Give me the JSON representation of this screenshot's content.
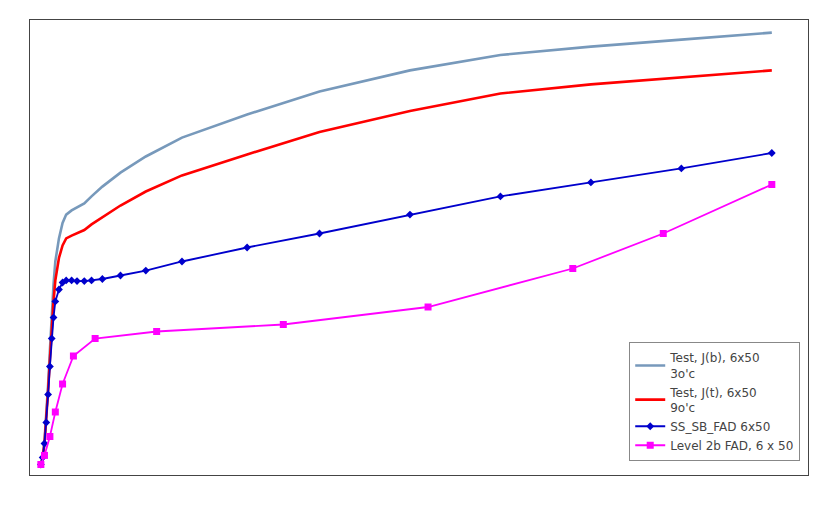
{
  "chart_data": {
    "type": "line",
    "series": [
      {
        "name": "Test, J(b), 6x50\n3o'c",
        "color": "#7799bb",
        "line_style": "solid",
        "x": [
          0.003,
          0.0035,
          0.004,
          0.0045,
          0.005,
          0.0055,
          0.006,
          0.0065,
          0.007,
          0.008,
          0.009,
          0.01,
          0.0115,
          0.013,
          0.015,
          0.017,
          0.02,
          0.025,
          0.032,
          0.042,
          0.06,
          0.08,
          0.105,
          0.13,
          0.155,
          0.18,
          0.205
        ],
        "values": [
          0.015,
          0.025,
          0.048,
          0.082,
          0.128,
          0.178,
          0.228,
          0.272,
          0.305,
          0.338,
          0.36,
          0.372,
          0.378,
          0.382,
          0.388,
          0.398,
          0.412,
          0.432,
          0.455,
          0.482,
          0.515,
          0.548,
          0.578,
          0.6,
          0.612,
          0.622,
          0.632
        ]
      },
      {
        "name": "Test, J(t), 6x50\n9o'c",
        "color": "#ff0000",
        "line_style": "solid",
        "x": [
          0.003,
          0.0035,
          0.004,
          0.0045,
          0.005,
          0.0055,
          0.006,
          0.0065,
          0.007,
          0.008,
          0.009,
          0.01,
          0.0115,
          0.013,
          0.015,
          0.017,
          0.02,
          0.025,
          0.032,
          0.042,
          0.06,
          0.08,
          0.105,
          0.13,
          0.155,
          0.18,
          0.205
        ],
        "values": [
          0.015,
          0.025,
          0.045,
          0.078,
          0.12,
          0.165,
          0.21,
          0.248,
          0.278,
          0.31,
          0.328,
          0.338,
          0.342,
          0.345,
          0.35,
          0.358,
          0.368,
          0.385,
          0.405,
          0.428,
          0.458,
          0.49,
          0.52,
          0.545,
          0.558,
          0.568,
          0.578
        ]
      },
      {
        "name": "SS_SB_FAD 6x50",
        "color": "#0000cc",
        "line_style": "solid",
        "marker": "diamond",
        "x": [
          0.003,
          0.0035,
          0.004,
          0.0045,
          0.005,
          0.0055,
          0.006,
          0.0065,
          0.007,
          0.008,
          0.009,
          0.01,
          0.0115,
          0.013,
          0.015,
          0.017,
          0.02,
          0.025,
          0.032,
          0.042,
          0.06,
          0.08,
          0.105,
          0.13,
          0.155,
          0.18,
          0.205
        ],
        "values": [
          0.015,
          0.025,
          0.045,
          0.075,
          0.115,
          0.155,
          0.195,
          0.225,
          0.248,
          0.265,
          0.275,
          0.278,
          0.278,
          0.277,
          0.277,
          0.278,
          0.28,
          0.285,
          0.292,
          0.305,
          0.325,
          0.345,
          0.372,
          0.398,
          0.418,
          0.438,
          0.46
        ]
      },
      {
        "name": "Level 2b FAD, 6 x 50",
        "color": "#ff00ff",
        "line_style": "solid",
        "marker": "square",
        "x": [
          0.003,
          0.004,
          0.0055,
          0.007,
          0.009,
          0.012,
          0.018,
          0.035,
          0.07,
          0.11,
          0.15,
          0.175,
          0.205
        ],
        "values": [
          0.015,
          0.028,
          0.055,
          0.09,
          0.13,
          0.17,
          0.195,
          0.205,
          0.215,
          0.24,
          0.295,
          0.345,
          0.415
        ]
      }
    ],
    "xlim": [
      0.0,
      0.215
    ],
    "ylim": [
      0.0,
      0.65
    ],
    "tick_labels": false,
    "grid": false,
    "legend": "lower right"
  }
}
